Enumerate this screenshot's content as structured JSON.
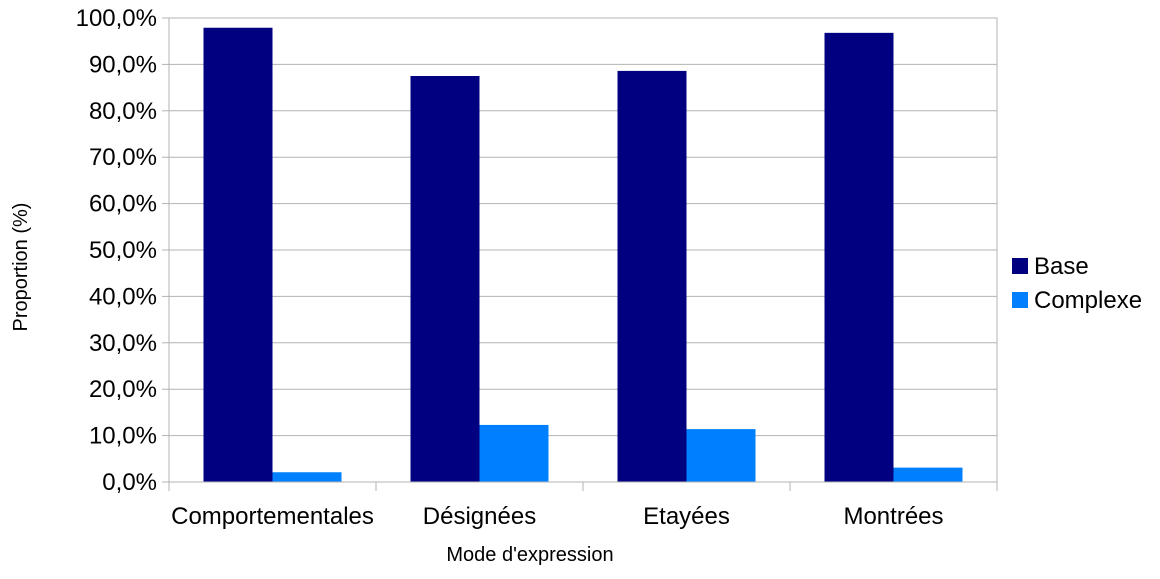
{
  "chart_data": {
    "type": "bar",
    "title": "",
    "xlabel": "Mode d'expression",
    "ylabel": "Proportion (%)",
    "categories": [
      "Comportementales",
      "Désignées",
      "Etayées",
      "Montrées"
    ],
    "series": [
      {
        "name": "Base",
        "values": [
          97.9,
          87.5,
          88.6,
          96.8
        ],
        "color": "#000080"
      },
      {
        "name": "Complexe",
        "values": [
          2.1,
          12.3,
          11.4,
          3.1
        ],
        "color": "#0080ff"
      }
    ],
    "ylim": [
      0,
      100
    ],
    "yticks": [
      "0,0%",
      "10,0%",
      "20,0%",
      "30,0%",
      "40,0%",
      "50,0%",
      "60,0%",
      "70,0%",
      "80,0%",
      "90,0%",
      "100,0%"
    ],
    "grid": true,
    "legend_position": "right"
  }
}
